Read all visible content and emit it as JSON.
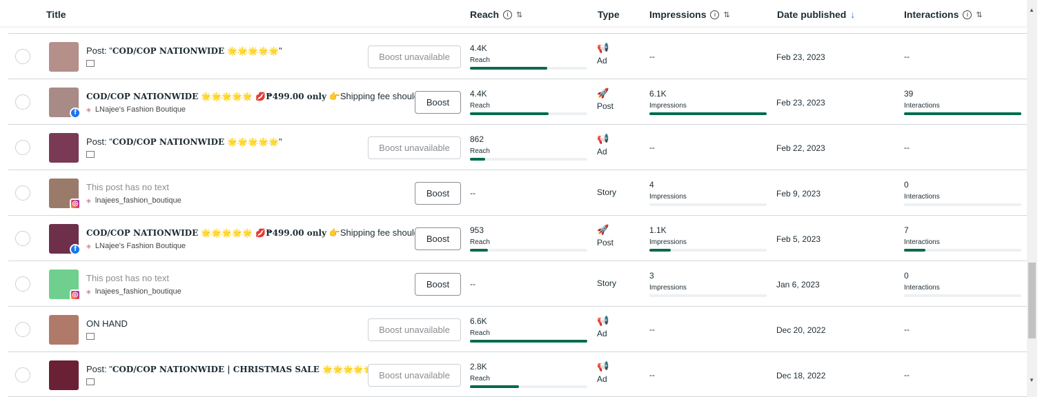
{
  "header": {
    "title": "Title",
    "reach": "Reach",
    "type": "Type",
    "impressions": "Impressions",
    "date": "Date published",
    "interactions": "Interactions",
    "info": "i",
    "sort": "⇅",
    "sort_desc": "↓"
  },
  "colors": {
    "bar": "#006b4d",
    "accent": "#1877f2"
  },
  "rows": [
    {
      "title_prefix": "Post: \"",
      "title_bold": "COD/COP NATIONWIDE 🌟🌟🌟🌟🌟",
      "title_suffix": "\"",
      "sub": "",
      "platform": "page",
      "thumb": "#b58f8a",
      "button": "Boost unavailable",
      "reach": "4.4K",
      "reach_label": "Reach",
      "reach_pct": 0.66,
      "type": "Ad",
      "type_icon": "megaphone-icon",
      "impressions": "--",
      "imp_label": "",
      "imp_pct": null,
      "date": "Feb 23, 2023",
      "interactions": "--",
      "int_label": "",
      "int_pct": null
    },
    {
      "title_prefix": "",
      "title_bold": "COD/COP NATIONWIDE 🌟🌟🌟🌟🌟 💋₱499.00 only",
      "title_suffix": " 👉Shipping fee should...",
      "sub": "LNajee's Fashion Boutique",
      "platform": "facebook",
      "thumb": "#a88a86",
      "button": "Boost",
      "reach": "4.4K",
      "reach_label": "Reach",
      "reach_pct": 0.67,
      "type": "Post",
      "type_icon": "rocket-icon",
      "impressions": "6.1K",
      "imp_label": "Impressions",
      "imp_pct": 1.0,
      "date": "Feb 23, 2023",
      "interactions": "39",
      "int_label": "Interactions",
      "int_pct": 1.0
    },
    {
      "title_prefix": "Post: \"",
      "title_bold": "COD/COP NATIONWIDE 🌟🌟🌟🌟🌟",
      "title_suffix": "\"",
      "sub": "",
      "platform": "page",
      "thumb": "#7a3a55",
      "button": "Boost unavailable",
      "reach": "862",
      "reach_label": "Reach",
      "reach_pct": 0.13,
      "type": "Ad",
      "type_icon": "megaphone-icon",
      "impressions": "--",
      "imp_label": "",
      "imp_pct": null,
      "date": "Feb 22, 2023",
      "interactions": "--",
      "int_label": "",
      "int_pct": null
    },
    {
      "title_prefix": "",
      "title_bold": "",
      "title_suffix": "This post has no text",
      "muted": true,
      "sub": "lnajees_fashion_boutique",
      "platform": "instagram",
      "thumb": "#9a7b6a",
      "button": "Boost",
      "reach": "--",
      "reach_label": "",
      "reach_pct": null,
      "type": "Story",
      "type_icon": "",
      "impressions": "4",
      "imp_label": "Impressions",
      "imp_pct": 0,
      "date": "Feb 9, 2023",
      "interactions": "0",
      "int_label": "Interactions",
      "int_pct": 0
    },
    {
      "title_prefix": "",
      "title_bold": "COD/COP NATIONWIDE 🌟🌟🌟🌟🌟 💋₱499.00 only",
      "title_suffix": " 👉Shipping fee should...",
      "sub": "LNajee's Fashion Boutique",
      "platform": "facebook",
      "thumb": "#6d2f4a",
      "button": "Boost",
      "reach": "953",
      "reach_label": "Reach",
      "reach_pct": 0.15,
      "type": "Post",
      "type_icon": "rocket-icon",
      "impressions": "1.1K",
      "imp_label": "Impressions",
      "imp_pct": 0.18,
      "date": "Feb 5, 2023",
      "interactions": "7",
      "int_label": "Interactions",
      "int_pct": 0.18
    },
    {
      "title_prefix": "",
      "title_bold": "",
      "title_suffix": "This post has no text",
      "muted": true,
      "sub": "lnajees_fashion_boutique",
      "platform": "instagram",
      "thumb": "#6fcf8f",
      "button": "Boost",
      "reach": "--",
      "reach_label": "",
      "reach_pct": null,
      "type": "Story",
      "type_icon": "",
      "impressions": "3",
      "imp_label": "Impressions",
      "imp_pct": 0,
      "date": "Jan 6, 2023",
      "interactions": "0",
      "int_label": "Interactions",
      "int_pct": 0
    },
    {
      "title_prefix": "ON HAND",
      "title_bold": "",
      "title_suffix": "",
      "sub": "",
      "platform": "page",
      "thumb": "#b07a6a",
      "button": "Boost unavailable",
      "reach": "6.6K",
      "reach_label": "Reach",
      "reach_pct": 1.0,
      "type": "Ad",
      "type_icon": "megaphone-icon",
      "impressions": "--",
      "imp_label": "",
      "imp_pct": null,
      "date": "Dec 20, 2022",
      "interactions": "--",
      "int_label": "",
      "int_pct": null
    },
    {
      "title_prefix": "Post: \"",
      "title_bold": "COD/COP NATIONWIDE | CHRISTMAS SALE 🌟🌟🌟🌟🌟",
      "title_suffix": "\"",
      "sub": "",
      "platform": "page",
      "thumb": "#6a2035",
      "button": "Boost unavailable",
      "reach": "2.8K",
      "reach_label": "Reach",
      "reach_pct": 0.42,
      "type": "Ad",
      "type_icon": "megaphone-icon",
      "impressions": "--",
      "imp_label": "",
      "imp_pct": null,
      "date": "Dec 18, 2022",
      "interactions": "--",
      "int_label": "",
      "int_pct": null
    }
  ]
}
